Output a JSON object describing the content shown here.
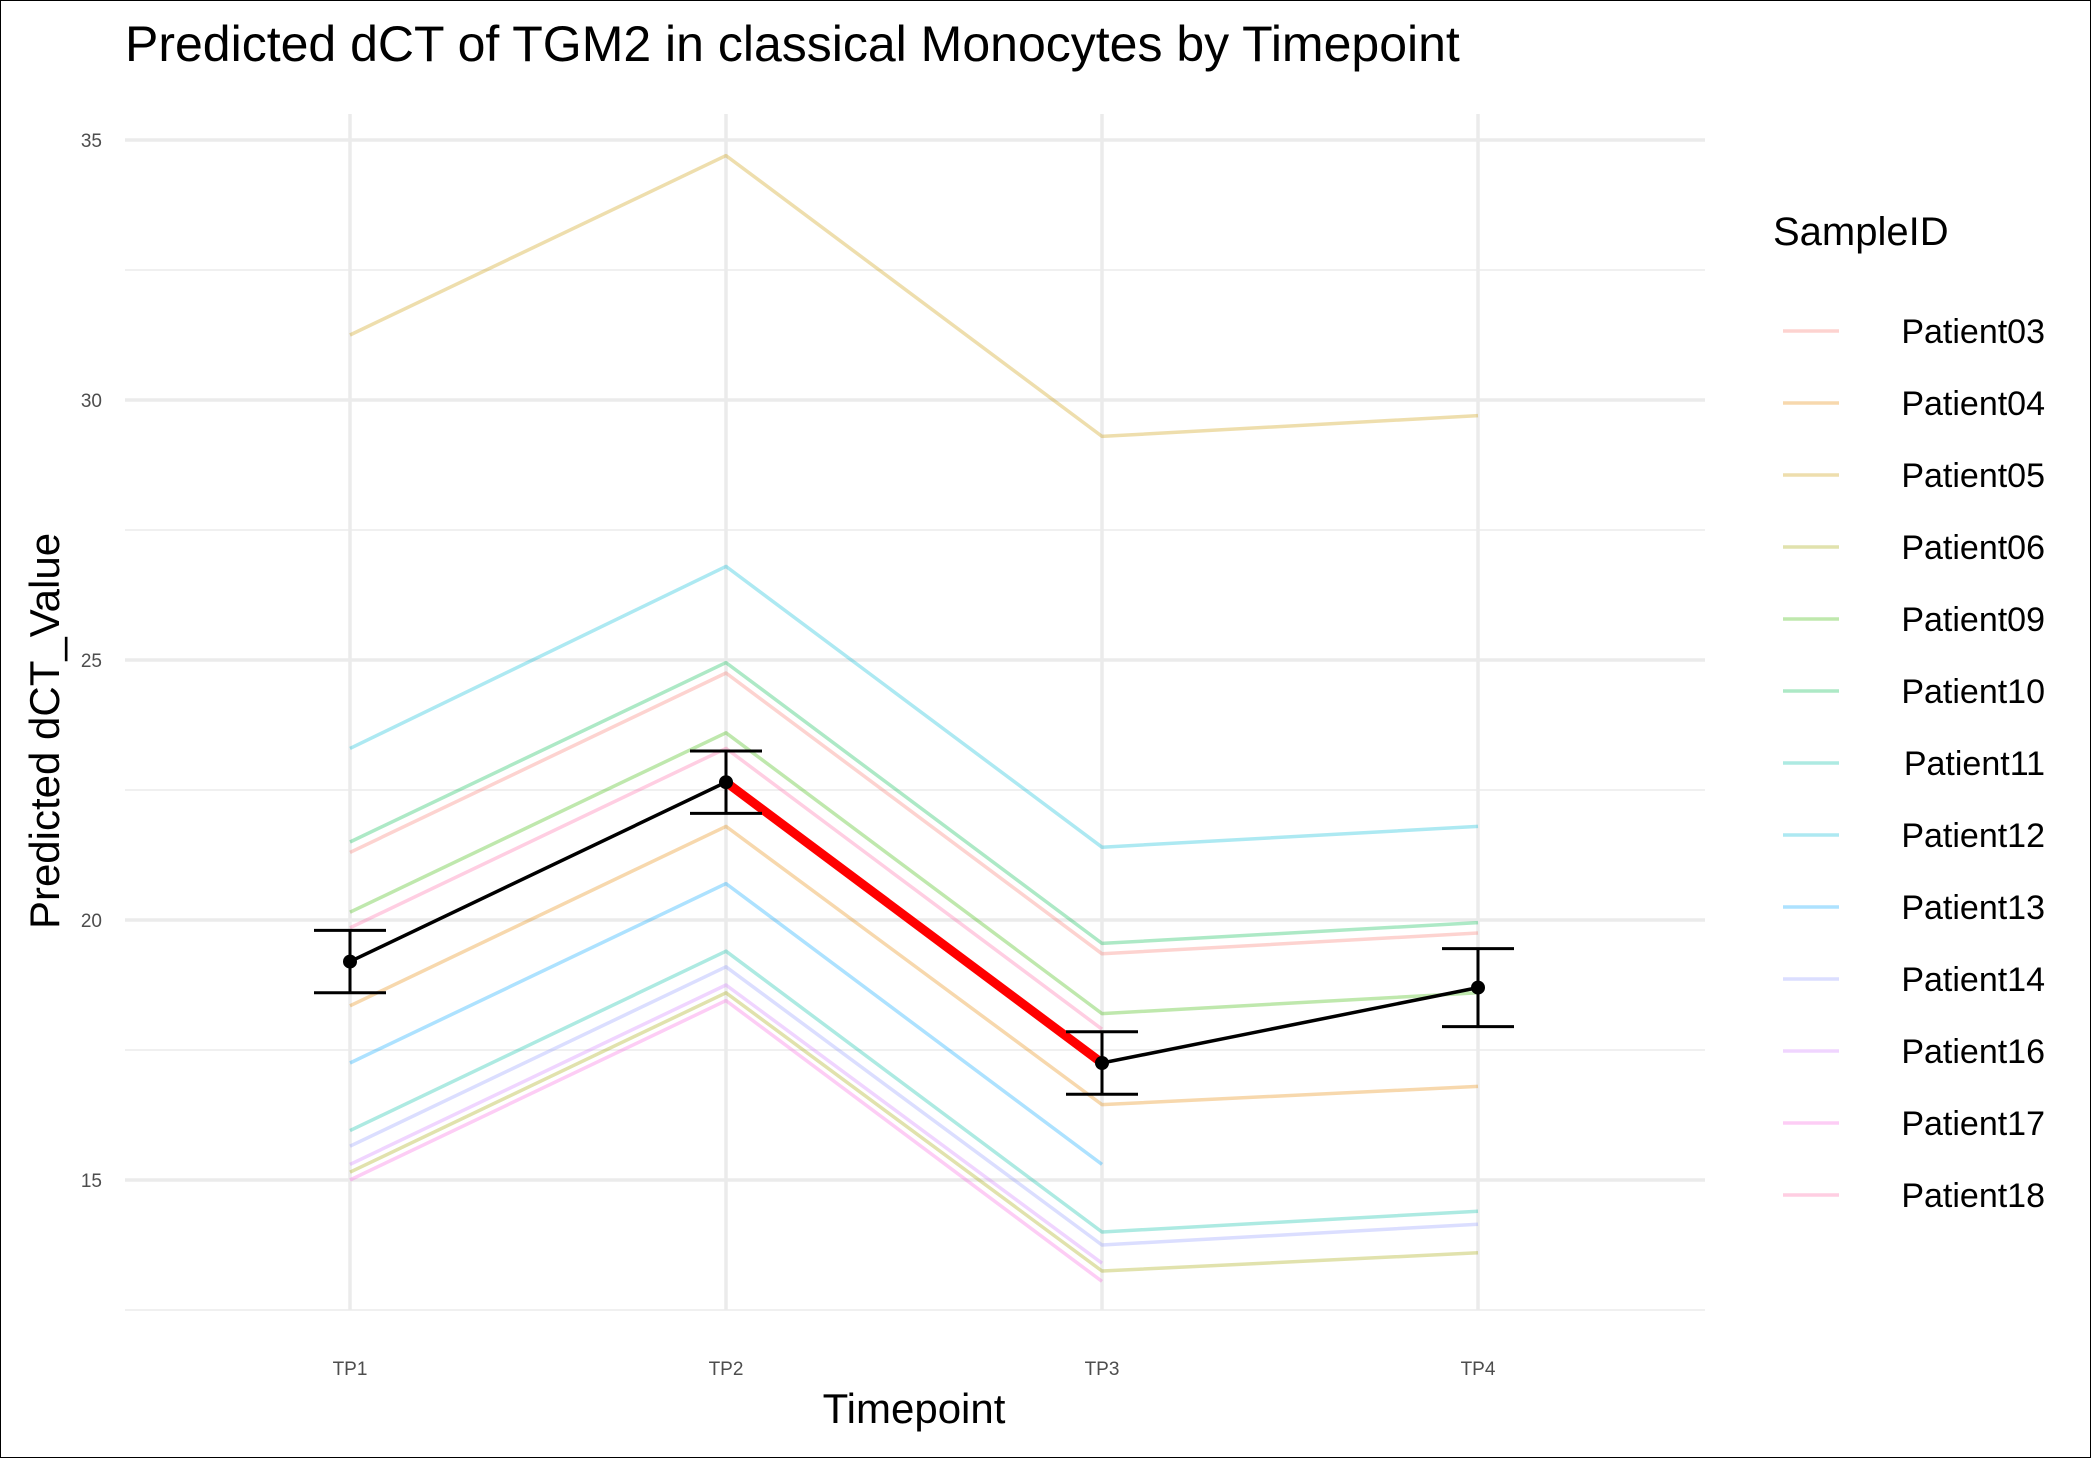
{
  "chart_data": {
    "type": "line",
    "title": "Predicted dCT of  TGM2 in  classical  Monocytes by Timepoint",
    "xlabel": "Timepoint",
    "ylabel": "Predicted dCT_Value",
    "categories": [
      "TP1",
      "TP2",
      "TP3",
      "TP4"
    ],
    "ylim": [
      12.5,
      35.5
    ],
    "y_ticks": [
      15,
      20,
      25,
      30,
      35
    ],
    "y_minor_ticks": [
      12.5,
      17.5,
      22.5,
      27.5,
      32.5
    ],
    "grid": true,
    "legend": {
      "title": "SampleID",
      "position": "right"
    },
    "series": [
      {
        "name": "Patient03",
        "color": "#F8766D",
        "values": [
          21.3,
          24.75,
          19.35,
          19.75
        ]
      },
      {
        "name": "Patient04",
        "color": "#E58700",
        "values": [
          18.35,
          21.8,
          16.45,
          16.8
        ]
      },
      {
        "name": "Patient05",
        "color": "#C99800",
        "values": [
          31.25,
          34.7,
          29.3,
          29.7
        ]
      },
      {
        "name": "Patient06",
        "color": "#A3A500",
        "values": [
          15.15,
          18.6,
          13.25,
          13.6
        ]
      },
      {
        "name": "Patient09",
        "color": "#39B600",
        "values": [
          20.15,
          23.6,
          18.2,
          18.6
        ]
      },
      {
        "name": "Patient10",
        "color": "#00BB4E",
        "values": [
          21.5,
          24.95,
          19.55,
          19.95
        ]
      },
      {
        "name": "Patient11",
        "color": "#00BFA4",
        "values": [
          15.95,
          19.4,
          14.0,
          14.4
        ]
      },
      {
        "name": "Patient12",
        "color": "#00BCD8",
        "values": [
          23.3,
          26.8,
          21.4,
          21.8
        ]
      },
      {
        "name": "Patient13",
        "color": "#00A5FF",
        "values": [
          17.25,
          20.7,
          15.3,
          null
        ]
      },
      {
        "name": "Patient14",
        "color": "#8E98FF",
        "values": [
          15.65,
          19.1,
          13.75,
          14.15
        ]
      },
      {
        "name": "Patient16",
        "color": "#CF7BFF",
        "values": [
          15.3,
          18.75,
          13.4,
          null
        ]
      },
      {
        "name": "Patient17",
        "color": "#F863DF",
        "values": [
          15.0,
          18.45,
          13.05,
          null
        ]
      },
      {
        "name": "Patient18",
        "color": "#FF67A4",
        "values": [
          19.85,
          23.3,
          17.9,
          null
        ]
      }
    ],
    "mean_series": {
      "values": [
        19.2,
        22.65,
        17.25,
        18.7
      ],
      "error_low": [
        18.6,
        22.05,
        16.65,
        17.95
      ],
      "error_high": [
        19.8,
        23.25,
        17.85,
        19.45
      ],
      "color": "#000000"
    },
    "highlight_segment": {
      "from": "TP2",
      "to": "TP3",
      "color": "#FF0000"
    }
  }
}
